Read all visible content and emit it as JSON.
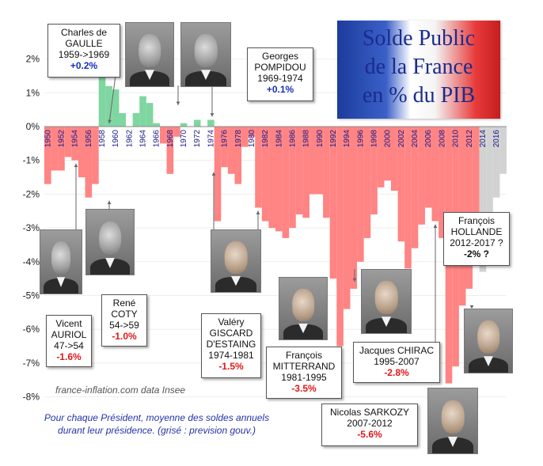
{
  "chart_data": {
    "type": "bar",
    "title": "Solde Public de la France en % du PIB",
    "title_lines": [
      "Solde Public",
      "de la France",
      "en % du PIB"
    ],
    "ylim": [
      -8,
      3
    ],
    "yticks": [
      "2%",
      "1%",
      "0%",
      "-1%",
      "-2%",
      "-3%",
      "-4%",
      "-5%",
      "-6%",
      "-7%",
      "-8%"
    ],
    "xticks": [
      "1950",
      "1952",
      "1954",
      "1956",
      "1958",
      "1960",
      "1962",
      "1964",
      "1966",
      "1968",
      "1970",
      "1972",
      "1974",
      "1976",
      "1978",
      "1980",
      "1982",
      "1984",
      "1986",
      "1988",
      "1990",
      "1992",
      "1994",
      "1996",
      "1998",
      "2000",
      "2002",
      "2004",
      "2006",
      "2008",
      "2010",
      "2012",
      "2014",
      "2016"
    ],
    "x": [
      1950,
      1951,
      1952,
      1953,
      1954,
      1955,
      1956,
      1957,
      1958,
      1959,
      1960,
      1961,
      1962,
      1963,
      1964,
      1965,
      1966,
      1967,
      1968,
      1969,
      1970,
      1971,
      1972,
      1973,
      1974,
      1975,
      1976,
      1977,
      1978,
      1979,
      1980,
      1981,
      1982,
      1983,
      1984,
      1985,
      1986,
      1987,
      1988,
      1989,
      1990,
      1991,
      1992,
      1993,
      1994,
      1995,
      1996,
      1997,
      1998,
      1999,
      2000,
      2001,
      2002,
      2003,
      2004,
      2005,
      2006,
      2007,
      2008,
      2009,
      2010,
      2011,
      2012,
      2013,
      2014,
      2015,
      2016,
      2017
    ],
    "values": [
      -1.7,
      -1.3,
      -1.3,
      -0.9,
      -1.0,
      -1.5,
      -2.1,
      -1.7,
      1.5,
      1.2,
      1.1,
      0.4,
      0.0,
      0.4,
      0.9,
      0.7,
      0.1,
      -0.5,
      -1.4,
      -0.3,
      0.1,
      0.0,
      0.2,
      0.0,
      0.2,
      -2.8,
      -1.2,
      -1.4,
      -1.7,
      -0.6,
      -0.3,
      -2.4,
      -2.8,
      -3.0,
      -3.1,
      -3.3,
      -3.0,
      -2.6,
      -2.7,
      -2.0,
      -2.0,
      -2.7,
      -4.5,
      -6.5,
      -5.4,
      -4.8,
      -4.0,
      -3.3,
      -2.6,
      -1.8,
      -1.6,
      -1.9,
      -3.4,
      -4.2,
      -3.6,
      -2.9,
      -2.4,
      -2.8,
      -3.3,
      -7.6,
      -7.1,
      -5.3,
      -4.8,
      -4.1,
      -4.3,
      -2.7,
      -2.1,
      -1.4
    ],
    "bar_colors": {
      "positive": "#7fd6a0",
      "negative": "#ff8484",
      "forecast": "#d2d2d2"
    },
    "forecast_from": 2014
  },
  "presidents": [
    {
      "name": "Charles de GAULLE",
      "lines": [
        "Charles de",
        "GAULLE",
        "1959->1969"
      ],
      "value": "+0.2%",
      "sign": "pos"
    },
    {
      "name": "Georges POMPIDOU",
      "lines": [
        "Georges",
        "POMPIDOU",
        "1969-1974"
      ],
      "value": "+0.1%",
      "sign": "pos"
    },
    {
      "name": "Vicent AURIOL",
      "lines": [
        "Vicent",
        "AURIOL",
        "47->54"
      ],
      "value": "-1.6%",
      "sign": "neg"
    },
    {
      "name": "René COTY",
      "lines": [
        "René",
        "COTY",
        "54->59"
      ],
      "value": "-1.0%",
      "sign": "neg"
    },
    {
      "name": "Valéry GISCARD D'ESTAING",
      "lines": [
        "Valéry",
        "GISCARD",
        "D'ESTAING",
        "1974-1981"
      ],
      "value": "-1.5%",
      "sign": "neg"
    },
    {
      "name": "François MITTERRAND",
      "lines": [
        "François",
        "MITTERRAND",
        "1981-1995"
      ],
      "value": "-3.5%",
      "sign": "neg"
    },
    {
      "name": "Jacques CHIRAC",
      "lines": [
        "Jacques CHIRAC",
        "1995-2007"
      ],
      "value": "-2.8%",
      "sign": "neg"
    },
    {
      "name": "Nicolas SARKOZY",
      "lines": [
        "Nicolas SARKOZY",
        "2007-2012"
      ],
      "value": "-5.6%",
      "sign": "neg"
    },
    {
      "name": "François HOLLANDE",
      "lines": [
        "François",
        "HOLLANDE",
        "2012-2017 ?"
      ],
      "value": "-2% ?",
      "sign": "plain"
    }
  ],
  "source": "france-inflation.com  data Insee",
  "note_lines": [
    "Pour chaque Président, moyenne des soldes annuels",
    "durant leur présidence. (grisé : prevision gouv.)"
  ]
}
